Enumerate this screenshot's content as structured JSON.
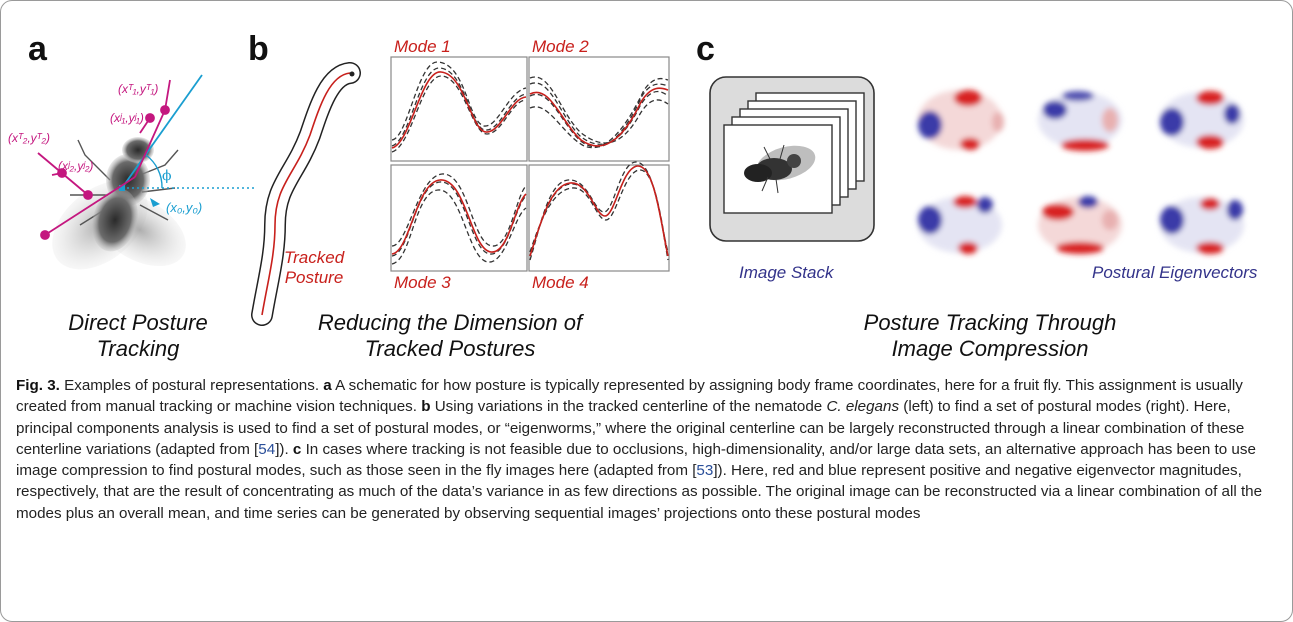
{
  "panels": {
    "a": {
      "letter": "a",
      "caption_lines": [
        "Direct Posture",
        "Tracking"
      ],
      "coord_labels": {
        "t1": "(xᵀ₁,yᵀ₁)",
        "j1": "(xʲ₁,yʲ₁)",
        "t2": "(xᵀ₂,yᵀ₂)",
        "j2": "(xʲ₂,yʲ₂)",
        "origin": "(x₀,y₀)",
        "phi": "ϕ"
      }
    },
    "b": {
      "letter": "b",
      "caption_lines": [
        "Reducing the Dimension of",
        "Tracked Postures"
      ],
      "tracked_lines": [
        "Tracked",
        "Posture"
      ],
      "modes": [
        "Mode 1",
        "Mode 2",
        "Mode 3",
        "Mode 4"
      ]
    },
    "c": {
      "letter": "c",
      "caption_lines": [
        "Posture Tracking Through",
        "Image Compression"
      ],
      "image_stack_label": "Image Stack",
      "eigenvectors_label": "Postural Eigenvectors"
    }
  },
  "colors": {
    "magenta": "#c4177f",
    "cyan": "#1a9ed0",
    "red": "#c8201c",
    "blue": "#33338a"
  },
  "caption": {
    "fig_label": "Fig. 3.",
    "intro": " Examples of postural representations. ",
    "a_letter": "a",
    "a_text": " A schematic for how posture is typically represented by assigning body frame coordinates, here for a fruit fly. This assignment is usually created from manual tracking or machine vision techniques. ",
    "b_letter": "b",
    "b_text_1": " Using variations in the tracked centerline of the nematode ",
    "b_species": "C. elegans",
    "b_text_2": " (left) to find a set of postural modes (right). Here, principal components analysis is used to find a set of postural modes, or “eigenworms,” where the original centerline can be largely reconstructed through a linear combination of these centerline variations (adapted from [",
    "b_ref": "54",
    "b_text_3": "]). ",
    "c_letter": "c",
    "c_text_1": " In cases where tracking is not feasible due to occlusions, high-dimensionality, and/or large data sets, an alternative approach has been to use image compression to find postural modes, such as those seen in the fly images here (adapted from [",
    "c_ref": "53",
    "c_text_2": "]). Here, red and blue represent positive and negative eigenvector magnitudes, respectively, that are the result of concentrating as much of the data’s variance in as few directions as possible. The original image can be reconstructed via a linear combination of all the modes plus an overall mean, and time series can be generated by observing sequential images’ projections onto these postural modes"
  }
}
